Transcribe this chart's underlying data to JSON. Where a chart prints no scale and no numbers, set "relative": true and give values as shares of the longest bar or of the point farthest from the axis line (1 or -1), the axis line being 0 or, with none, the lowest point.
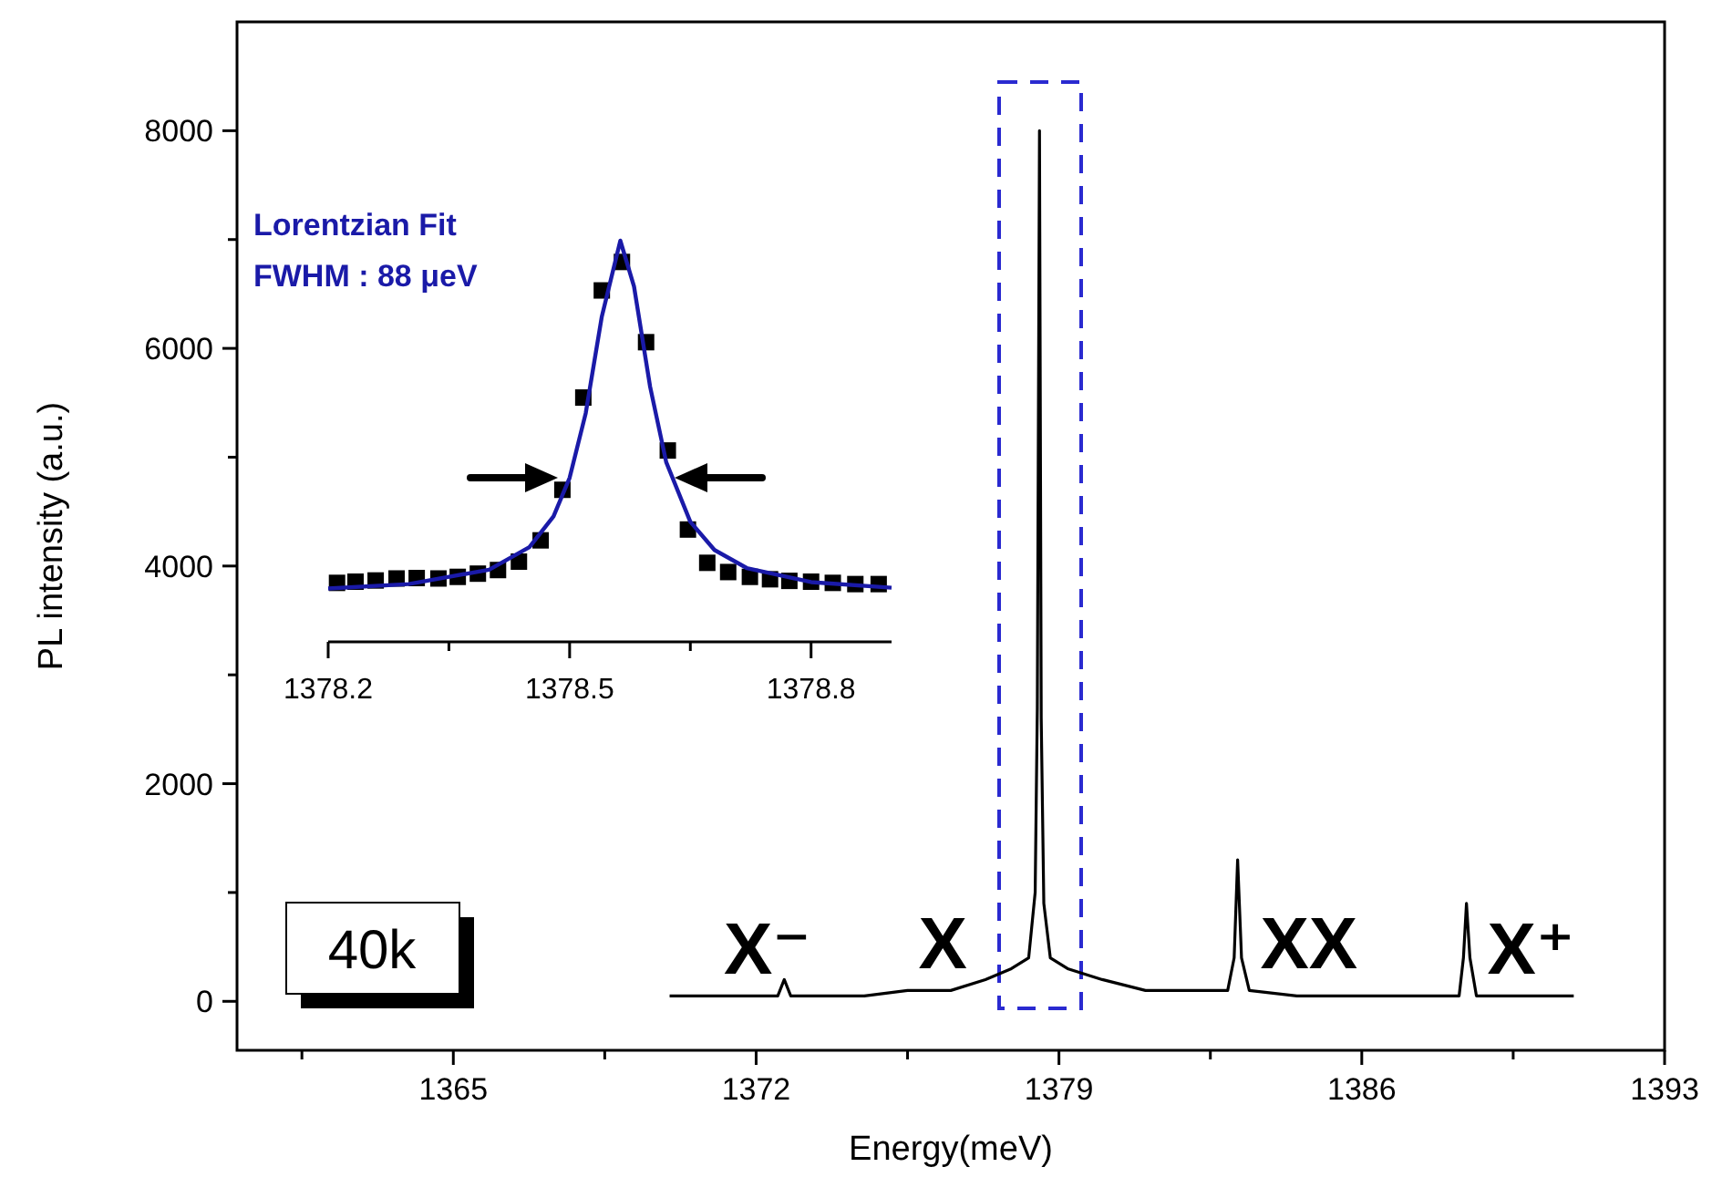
{
  "chart_data": [
    {
      "type": "line",
      "xlabel": "Energy(meV)",
      "ylabel": "PL intensity (a.u.)",
      "color": "#000000",
      "x": [
        1370.0,
        1371.0,
        1372.0,
        1372.5,
        1372.65,
        1372.8,
        1373.5,
        1374.5,
        1375.5,
        1376.5,
        1377.3,
        1377.9,
        1378.3,
        1378.45,
        1378.5,
        1378.55,
        1378.59,
        1378.65,
        1378.8,
        1379.2,
        1380,
        1381,
        1382,
        1382.9,
        1383.05,
        1383.13,
        1383.22,
        1383.4,
        1384.5,
        1386,
        1387.5,
        1388.25,
        1388.35,
        1388.42,
        1388.5,
        1388.65,
        1389.5,
        1390.9
      ],
      "values": [
        50,
        50,
        50,
        50,
        200,
        50,
        50,
        50,
        100,
        100,
        200,
        300,
        400,
        1000,
        2700,
        8000,
        2600,
        900,
        400,
        300,
        200,
        100,
        100,
        100,
        400,
        1300,
        400,
        100,
        50,
        50,
        50,
        50,
        400,
        900,
        400,
        50,
        50,
        50
      ],
      "xlim": [
        1360,
        1393
      ],
      "ylim": [
        -450,
        9000
      ],
      "xticks": [
        {
          "value": 1361.5,
          "label": null
        },
        1365,
        {
          "value": 1368.5,
          "label": null
        },
        1372,
        {
          "value": 1375.5,
          "label": null
        },
        1379,
        {
          "value": 1382.5,
          "label": null
        },
        1386,
        {
          "value": 1389.5,
          "label": null
        },
        1393
      ],
      "yticks": [
        0,
        {
          "value": 1000,
          "label": null
        },
        2000,
        {
          "value": 3000,
          "label": null
        },
        4000,
        {
          "value": 5000,
          "label": null
        },
        6000,
        {
          "value": 7000,
          "label": null
        },
        8000
      ],
      "annotations": [
        {
          "text": "X⁻",
          "x": 1371.0,
          "y": 50
        },
        {
          "text": "X",
          "x": 1375.5,
          "y": 100
        },
        {
          "text": "XX",
          "x": 1383.4,
          "y": 100
        },
        {
          "text": "X⁺",
          "x": 1388.65,
          "y": 50
        },
        "40k"
      ]
    },
    {
      "type": "line",
      "relative": true,
      "tick_labels": "x",
      "xlim": [
        1378.2,
        1378.9
      ],
      "xticks": [
        1378.2,
        {
          "value": 1378.35,
          "label": null
        },
        1378.5,
        {
          "value": 1378.65,
          "label": null
        },
        1378.8
      ],
      "annotations": [
        "Lorentzian Fit",
        "FWHM : 88 μeV"
      ],
      "series": [
        {
          "type": "scatter",
          "marker": "square",
          "color": "#000000",
          "x": [
            1378.211,
            1378.234,
            1378.259,
            1378.285,
            1378.31,
            1378.337,
            1378.361,
            1378.386,
            1378.411,
            1378.437,
            1378.464,
            1378.491,
            1378.517,
            1378.54,
            1378.565,
            1378.595,
            1378.622,
            1378.647,
            1378.671,
            1378.697,
            1378.724,
            1378.749,
            1378.773,
            1378.8,
            1378.827,
            1378.855,
            1378.884
          ],
          "values": [
            0.147,
            0.15,
            0.153,
            0.158,
            0.159,
            0.158,
            0.162,
            0.17,
            0.179,
            0.2,
            0.253,
            0.379,
            0.609,
            0.876,
            0.947,
            0.747,
            0.477,
            0.28,
            0.197,
            0.174,
            0.162,
            0.156,
            0.152,
            0.15,
            0.147,
            0.144,
            0.144
          ]
        },
        {
          "color": "#1a1aa8",
          "x": [
            1378.2,
            1378.3,
            1378.4,
            1378.45,
            1378.48,
            1378.5,
            1378.52,
            1378.54,
            1378.563,
            1378.58,
            1378.6,
            1378.62,
            1378.65,
            1378.68,
            1378.72,
            1378.8,
            1378.9
          ],
          "values": [
            0.133,
            0.144,
            0.18,
            0.236,
            0.313,
            0.409,
            0.57,
            0.811,
            1.0,
            0.886,
            0.636,
            0.448,
            0.299,
            0.229,
            0.184,
            0.149,
            0.135
          ]
        }
      ]
    }
  ]
}
